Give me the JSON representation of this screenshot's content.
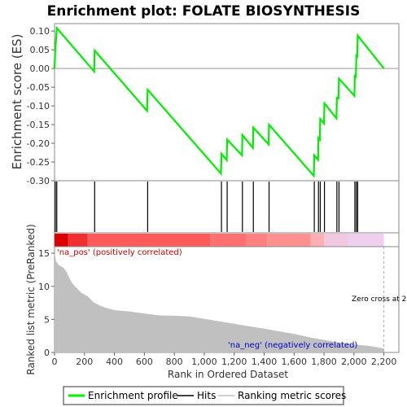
{
  "chart_data": {
    "type": "line",
    "title": "Enrichment plot: FOLATE BIOSYNTHESIS",
    "top_panel": {
      "ylabel": "Enrichment score (ES)",
      "ylim": [
        -0.3,
        0.12
      ],
      "yticks": [
        -0.3,
        -0.25,
        -0.2,
        -0.15,
        -0.1,
        -0.05,
        0.0,
        0.05,
        0.1
      ],
      "ytick_labels": [
        "-0.30",
        "-0.25",
        "-0.20",
        "-0.15",
        "-0.10",
        "-0.05",
        "0.00",
        "0.05",
        "0.10"
      ],
      "series": [
        {
          "name": "Enrichment profile",
          "color": "#00ee00",
          "points": [
            [
              0,
              0.0
            ],
            [
              5,
              0.05
            ],
            [
              15,
              0.108
            ],
            [
              265,
              -0.008
            ],
            [
              268,
              0.048
            ],
            [
              618,
              -0.113
            ],
            [
              622,
              -0.057
            ],
            [
              1112,
              -0.281
            ],
            [
              1115,
              -0.228
            ],
            [
              1150,
              -0.245
            ],
            [
              1153,
              -0.19
            ],
            [
              1252,
              -0.232
            ],
            [
              1255,
              -0.178
            ],
            [
              1325,
              -0.212
            ],
            [
              1328,
              -0.158
            ],
            [
              1430,
              -0.203
            ],
            [
              1433,
              -0.15
            ],
            [
              1732,
              -0.287
            ],
            [
              1735,
              -0.232
            ],
            [
              1760,
              -0.244
            ],
            [
              1763,
              -0.186
            ],
            [
              1772,
              -0.19
            ],
            [
              1775,
              -0.135
            ],
            [
              1800,
              -0.147
            ],
            [
              1803,
              -0.093
            ],
            [
              1883,
              -0.133
            ],
            [
              1886,
              -0.078
            ],
            [
              1897,
              -0.08
            ],
            [
              1900,
              -0.027
            ],
            [
              2003,
              -0.073
            ],
            [
              2006,
              -0.02
            ],
            [
              2013,
              -0.022
            ],
            [
              2016,
              0.035
            ],
            [
              2022,
              0.033
            ],
            [
              2025,
              0.088
            ],
            [
              2200,
              0.0
            ]
          ]
        }
      ]
    },
    "hits": {
      "name": "Hits",
      "positions": [
        5,
        15,
        268,
        622,
        1115,
        1153,
        1255,
        1328,
        1433,
        1735,
        1763,
        1775,
        1803,
        1886,
        1900,
        2006,
        2016,
        2025
      ]
    },
    "bottom_panel": {
      "ylabel": "Ranked list metric (PreRanked)",
      "xlabel": "Rank in Ordered Dataset",
      "ylim": [
        0,
        16
      ],
      "yticks": [
        0,
        5,
        10,
        15
      ],
      "xlim": [
        0,
        2300
      ],
      "xticks": [
        0,
        200,
        400,
        600,
        800,
        1000,
        1200,
        1400,
        1600,
        1800,
        2000,
        2200
      ],
      "xtick_labels": [
        "0",
        "200",
        "400",
        "600",
        "800",
        "1,000",
        "1,200",
        "1,400",
        "1,600",
        "1,800",
        "2,000",
        "2,200"
      ],
      "series": [
        {
          "name": "Ranking metric scores",
          "color": "#c0c0c0",
          "points": [
            [
              0,
              15.3
            ],
            [
              10,
              13.8
            ],
            [
              30,
              13.2
            ],
            [
              60,
              12.8
            ],
            [
              80,
              12.2
            ],
            [
              100,
              11.2
            ],
            [
              120,
              10.4
            ],
            [
              150,
              9.7
            ],
            [
              180,
              9.0
            ],
            [
              220,
              8.5
            ],
            [
              260,
              7.6
            ],
            [
              300,
              7.1
            ],
            [
              350,
              6.7
            ],
            [
              400,
              6.4
            ],
            [
              500,
              6.2
            ],
            [
              600,
              5.9
            ],
            [
              700,
              5.6
            ],
            [
              800,
              5.55
            ],
            [
              900,
              5.45
            ],
            [
              1000,
              5.1
            ],
            [
              1100,
              4.7
            ],
            [
              1200,
              4.35
            ],
            [
              1300,
              3.95
            ],
            [
              1400,
              3.6
            ],
            [
              1500,
              3.2
            ],
            [
              1600,
              2.8
            ],
            [
              1700,
              2.3
            ],
            [
              1800,
              1.9
            ],
            [
              1900,
              1.5
            ],
            [
              2000,
              1.2
            ],
            [
              2100,
              1.0
            ],
            [
              2200,
              0.6
            ]
          ]
        }
      ],
      "annotations": {
        "pos": "'na_pos' (positively correlated)",
        "neg": "'na_neg' (negatively correlated)",
        "zero_cross": "Zero cross at 2"
      }
    },
    "gradient_bar": {
      "segments": [
        {
          "start": 0,
          "end": 90,
          "color": "#dd0000"
        },
        {
          "start": 90,
          "end": 220,
          "color": "#f03030"
        },
        {
          "start": 220,
          "end": 1040,
          "color": "#ff5a5a"
        },
        {
          "start": 1040,
          "end": 1280,
          "color": "#ff7070"
        },
        {
          "start": 1280,
          "end": 1420,
          "color": "#ff8080"
        },
        {
          "start": 1420,
          "end": 1710,
          "color": "#ff9090"
        },
        {
          "start": 1710,
          "end": 1800,
          "color": "#ffb0b0"
        },
        {
          "start": 1800,
          "end": 1960,
          "color": "#f0c8e0"
        },
        {
          "start": 1960,
          "end": 2200,
          "color": "#eed0ee"
        }
      ]
    },
    "legend": {
      "placement": "bottom",
      "items": [
        {
          "label": "Enrichment profile",
          "color": "#00ee00"
        },
        {
          "label": "Hits",
          "color": "#000000"
        },
        {
          "label": "Ranking metric scores",
          "color": "#c0c0c0"
        }
      ]
    }
  }
}
